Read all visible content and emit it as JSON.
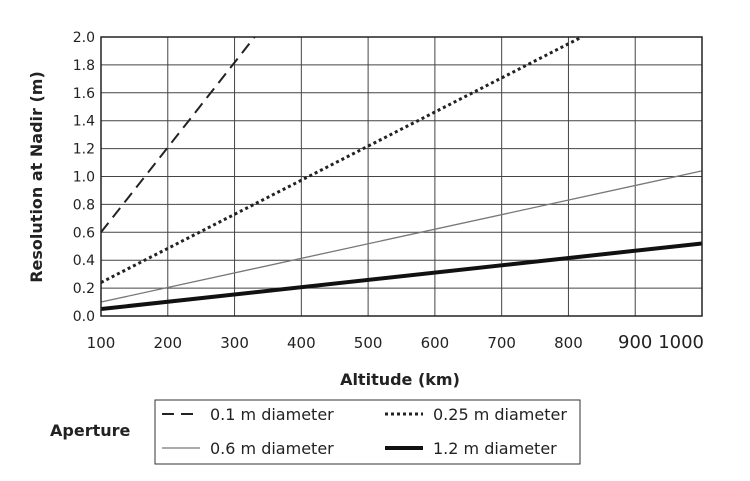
{
  "chart_data": {
    "type": "line",
    "title": "",
    "xlabel": "Altitude (km)",
    "ylabel": "Resolution at Nadir (m)",
    "xlim": [
      100,
      1000
    ],
    "ylim": [
      0,
      2.0
    ],
    "x_ticks": [
      "100",
      "200",
      "300",
      "400",
      "500",
      "600",
      "700",
      "800",
      "900",
      "1000"
    ],
    "y_ticks": [
      "0.0",
      "0.2",
      "0.4",
      "0.6",
      "0.8",
      "1.0",
      "1.2",
      "1.4",
      "1.6",
      "1.8",
      "2.0"
    ],
    "grid": true,
    "legend_title": "Aperture",
    "legend_position": "bottom",
    "series": [
      {
        "name": "0.1 m diameter",
        "style": "dashed",
        "color": "#222222",
        "x": [
          100,
          330
        ],
        "y": [
          0.6,
          2.0
        ]
      },
      {
        "name": "0.25 m diameter",
        "style": "dotted",
        "color": "#222222",
        "x": [
          100,
          820
        ],
        "y": [
          0.24,
          2.0
        ]
      },
      {
        "name": "0.6 m diameter",
        "style": "thin",
        "color": "#777777",
        "x": [
          100,
          1000
        ],
        "y": [
          0.1,
          1.04
        ]
      },
      {
        "name": "1.2 m diameter",
        "style": "thick",
        "color": "#111111",
        "x": [
          100,
          1000
        ],
        "y": [
          0.05,
          0.52
        ]
      }
    ]
  }
}
